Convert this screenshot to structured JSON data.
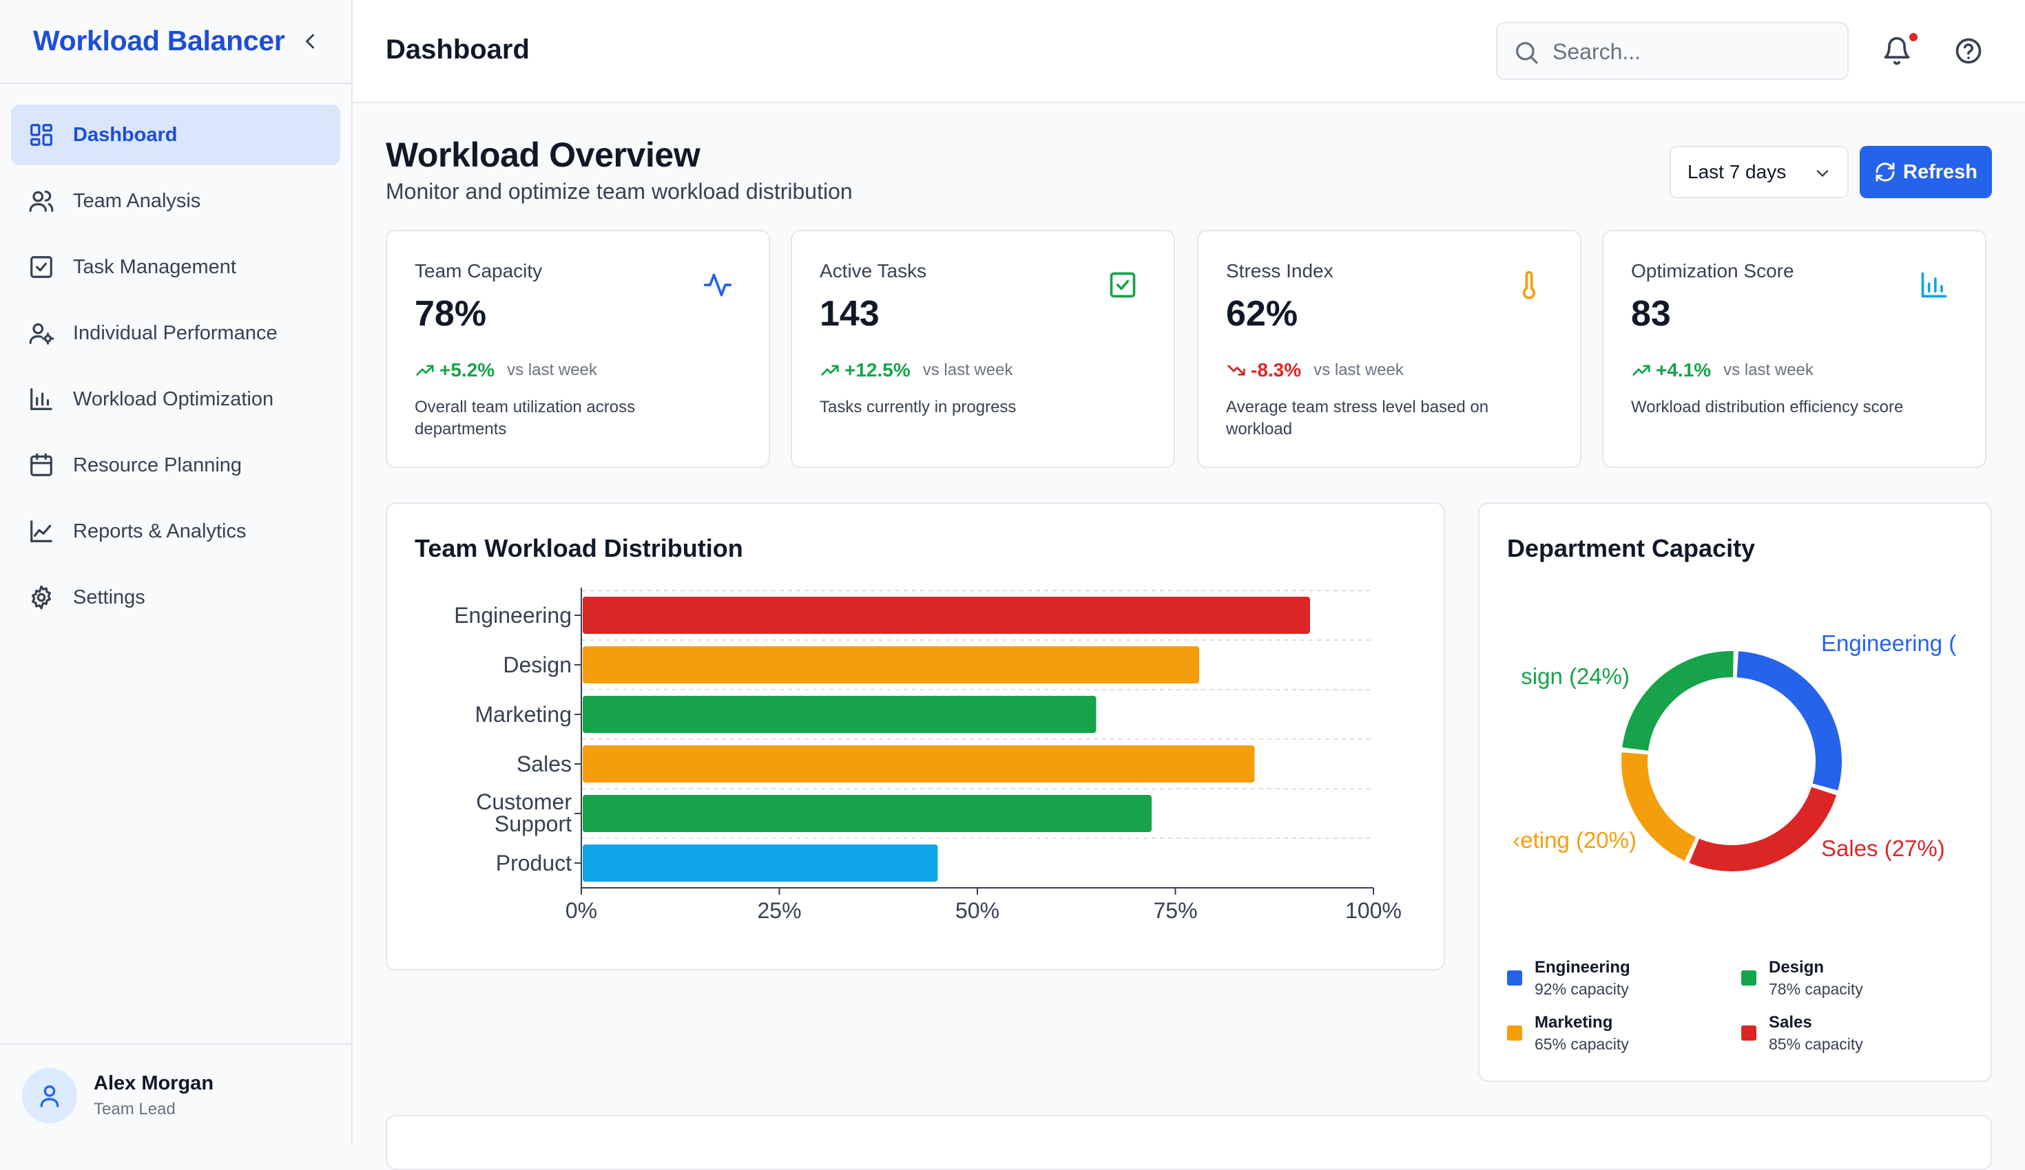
{
  "app": {
    "title": "Workload Balancer"
  },
  "sidebar": {
    "items": [
      {
        "label": "Dashboard",
        "icon": "dashboard-icon",
        "active": true
      },
      {
        "label": "Team Analysis",
        "icon": "users-icon"
      },
      {
        "label": "Task Management",
        "icon": "check-square-icon"
      },
      {
        "label": "Individual Performance",
        "icon": "user-cog-icon"
      },
      {
        "label": "Workload Optimization",
        "icon": "bar-chart-icon"
      },
      {
        "label": "Resource Planning",
        "icon": "calendar-icon"
      },
      {
        "label": "Reports & Analytics",
        "icon": "line-chart-icon"
      },
      {
        "label": "Settings",
        "icon": "gear-icon"
      }
    ],
    "user": {
      "name": "Alex Morgan",
      "role": "Team Lead"
    }
  },
  "header": {
    "title": "Dashboard",
    "search_placeholder": "Search..."
  },
  "overview": {
    "title": "Workload Overview",
    "subtitle": "Monitor and optimize team workload distribution",
    "range": "Last 7 days",
    "refresh_label": "Refresh"
  },
  "stats": [
    {
      "title": "Team Capacity",
      "value": "78%",
      "trend": "+5.2%",
      "direction": "up",
      "vs": "vs last week",
      "desc": "Overall team utilization across departments",
      "icon": "activity-icon",
      "icon_color": "#2563eb"
    },
    {
      "title": "Active Tasks",
      "value": "143",
      "trend": "+12.5%",
      "direction": "up",
      "vs": "vs last week",
      "desc": "Tasks currently in progress",
      "icon": "check-square-icon",
      "icon_color": "#16a34a"
    },
    {
      "title": "Stress Index",
      "value": "62%",
      "trend": "-8.3%",
      "direction": "down",
      "vs": "vs last week",
      "desc": "Average team stress level based on workload",
      "icon": "thermometer-icon",
      "icon_color": "#f59e0b"
    },
    {
      "title": "Optimization Score",
      "value": "83",
      "trend": "+4.1%",
      "direction": "up",
      "vs": "vs last week",
      "desc": "Workload distribution efficiency score",
      "icon": "bar-chart-icon",
      "icon_color": "#0ea5e9"
    }
  ],
  "workload_panel": {
    "title": "Team Workload Distribution"
  },
  "capacity_panel": {
    "title": "Department Capacity",
    "legend": [
      {
        "name": "Engineering",
        "capacity": "92% capacity",
        "color": "#2563eb"
      },
      {
        "name": "Design",
        "capacity": "78% capacity",
        "color": "#16a34a"
      },
      {
        "name": "Marketing",
        "capacity": "65% capacity",
        "color": "#f59e0b"
      },
      {
        "name": "Sales",
        "capacity": "85% capacity",
        "color": "#dc2626"
      }
    ]
  },
  "chart_data": [
    {
      "type": "bar",
      "orientation": "horizontal",
      "title": "Team Workload Distribution",
      "categories": [
        "Engineering",
        "Design",
        "Marketing",
        "Sales",
        "Customer Support",
        "Product"
      ],
      "values": [
        92,
        78,
        65,
        85,
        72,
        45
      ],
      "colors": [
        "#dc2626",
        "#f59e0b",
        "#16a34a",
        "#f59e0b",
        "#16a34a",
        "#0ea5e9"
      ],
      "xlim": [
        0,
        100
      ],
      "xticks": [
        "0%",
        "25%",
        "50%",
        "75%",
        "100%"
      ],
      "grid": true
    },
    {
      "type": "pie",
      "variant": "donut",
      "title": "Department Capacity",
      "categories": [
        "Engineering",
        "Sales",
        "Marketing",
        "Design"
      ],
      "values": [
        29,
        27,
        20,
        24
      ],
      "labels": [
        "Engineering (",
        "Sales (27%)",
        "‹eting (20%)",
        "sign (24%)"
      ],
      "colors": [
        "#2563eb",
        "#dc2626",
        "#f59e0b",
        "#16a34a"
      ]
    }
  ]
}
